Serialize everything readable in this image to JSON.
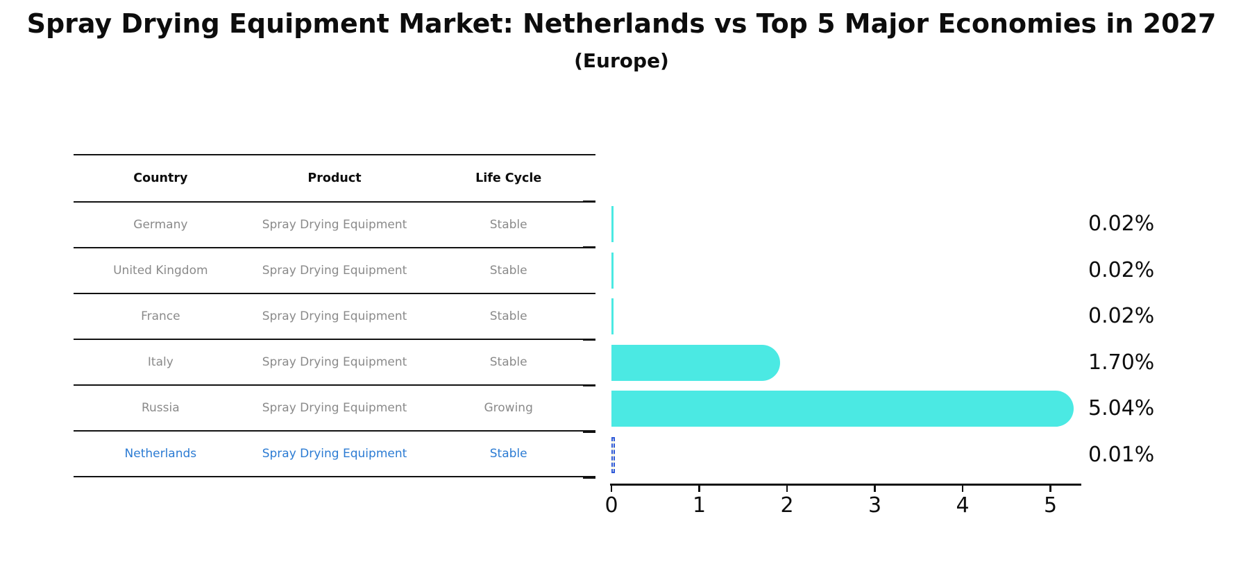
{
  "title": "Spray Drying Equipment Market: Netherlands vs Top 5 Major Economies in 2027",
  "subtitle": "(Europe)",
  "table": {
    "headers": [
      "Country",
      "Product",
      "Life Cycle"
    ],
    "rows": [
      {
        "country": "Germany",
        "product": "Spray Drying Equipment",
        "life_cycle": "Stable",
        "highlighted": false
      },
      {
        "country": "United Kingdom",
        "product": "Spray Drying Equipment",
        "life_cycle": "Stable",
        "highlighted": false
      },
      {
        "country": "France",
        "product": "Spray Drying Equipment",
        "life_cycle": "Stable",
        "highlighted": false
      },
      {
        "country": "Italy",
        "product": "Spray Drying Equipment",
        "life_cycle": "Stable",
        "highlighted": false
      },
      {
        "country": "Russia",
        "product": "Spray Drying Equipment",
        "life_cycle": "Growing",
        "highlighted": false
      },
      {
        "country": "Netherlands",
        "product": "Spray Drying Equipment",
        "life_cycle": "Stable",
        "highlighted": true
      }
    ]
  },
  "chart_data": {
    "type": "bar",
    "orientation": "horizontal",
    "title": "Spray Drying Equipment Market: Netherlands vs Top 5 Major Economies in 2027",
    "subtitle": "(Europe)",
    "categories": [
      "Germany",
      "United Kingdom",
      "France",
      "Italy",
      "Russia",
      "Netherlands"
    ],
    "values": [
      0.02,
      0.02,
      0.02,
      1.7,
      5.04,
      0.01
    ],
    "value_labels": [
      "0.02%",
      "0.02%",
      "0.02%",
      "1.70%",
      "5.04%",
      "0.01%"
    ],
    "x_tick_labels": [
      "0",
      "1",
      "2",
      "3",
      "4",
      "5"
    ],
    "xlim": [
      0,
      5.35
    ],
    "grid": false,
    "legend": false,
    "xlabel": "",
    "ylabel": "",
    "bar_color": "#4BE9E3",
    "highlight": {
      "category": "Netherlands",
      "style": "dashed-outline",
      "edge_color": "#2e59d9",
      "text_color": "#2b7bd3"
    }
  }
}
